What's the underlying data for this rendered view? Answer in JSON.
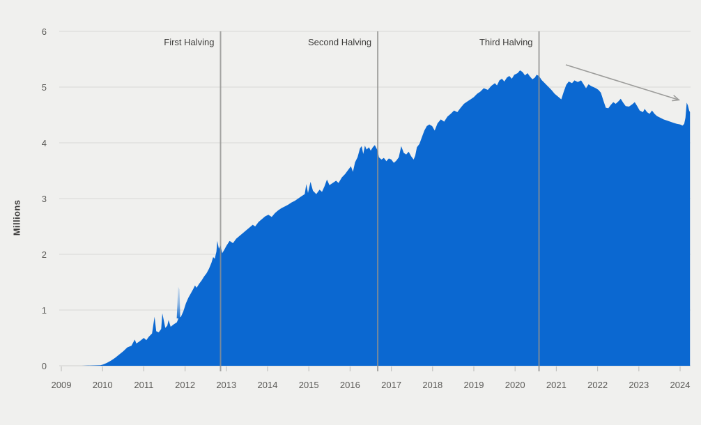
{
  "chart_data": {
    "type": "area",
    "title": "",
    "ylabel": "Millions",
    "xlabel": "",
    "ylim": [
      0,
      6
    ],
    "xlim": [
      2008.95,
      2024.3
    ],
    "grid": "horizontal",
    "yticks": [
      0,
      1,
      2,
      3,
      4,
      5,
      6
    ],
    "ytick_labels": [
      "0",
      "1",
      "2",
      "3",
      "4",
      "5",
      "6"
    ],
    "xticks": [
      2009,
      2010,
      2011,
      2012,
      2013,
      2014,
      2015,
      2016,
      2017,
      2018,
      2019,
      2020,
      2021,
      2022,
      2023,
      2024
    ],
    "xtick_labels": [
      "2009",
      "2010",
      "2011",
      "2012",
      "2013",
      "2014",
      "2015",
      "2016",
      "2017",
      "2018",
      "2019",
      "2020",
      "2021",
      "2022",
      "2023",
      "2024"
    ],
    "colors": {
      "background": "#f0f0ee",
      "area_fill": "#0b68d1",
      "gridline": "#dddddb",
      "axis_baseline": "#d6d6d4",
      "tick": "#c2c2c0",
      "halving_line": "#91918f",
      "arrow": "#9c9c9a",
      "axis_text": "#5b5a57",
      "annotation_text": "#3e3d3b"
    },
    "halvings": [
      {
        "label": "First Halving",
        "year": 2012.86
      },
      {
        "label": "Second Halving",
        "year": 2016.67
      },
      {
        "label": "Third Halving",
        "year": 2020.58
      }
    ],
    "trend_arrow": {
      "from": [
        2021.23,
        5.4
      ],
      "to": [
        2023.97,
        4.77
      ]
    },
    "anomaly_spike": {
      "year": 2011.84,
      "from_value": 0.85,
      "to_value": 1.42
    },
    "series": [
      {
        "name": "bitcoin-metric-millions",
        "points": [
          [
            2009.0,
            0.0
          ],
          [
            2009.5,
            0.0
          ],
          [
            2009.95,
            0.01
          ],
          [
            2010.0,
            0.02
          ],
          [
            2010.1,
            0.05
          ],
          [
            2010.2,
            0.09
          ],
          [
            2010.3,
            0.14
          ],
          [
            2010.4,
            0.2
          ],
          [
            2010.5,
            0.26
          ],
          [
            2010.6,
            0.33
          ],
          [
            2010.7,
            0.36
          ],
          [
            2010.78,
            0.47
          ],
          [
            2010.82,
            0.4
          ],
          [
            2010.9,
            0.44
          ],
          [
            2011.0,
            0.5
          ],
          [
            2011.06,
            0.46
          ],
          [
            2011.12,
            0.52
          ],
          [
            2011.2,
            0.58
          ],
          [
            2011.26,
            0.88
          ],
          [
            2011.3,
            0.62
          ],
          [
            2011.36,
            0.6
          ],
          [
            2011.42,
            0.66
          ],
          [
            2011.45,
            0.94
          ],
          [
            2011.52,
            0.68
          ],
          [
            2011.57,
            0.72
          ],
          [
            2011.6,
            0.82
          ],
          [
            2011.65,
            0.7
          ],
          [
            2011.72,
            0.74
          ],
          [
            2011.8,
            0.78
          ],
          [
            2011.84,
            0.85
          ],
          [
            2011.9,
            0.88
          ],
          [
            2011.96,
            0.98
          ],
          [
            2012.02,
            1.12
          ],
          [
            2012.08,
            1.22
          ],
          [
            2012.14,
            1.3
          ],
          [
            2012.2,
            1.38
          ],
          [
            2012.24,
            1.44
          ],
          [
            2012.28,
            1.4
          ],
          [
            2012.34,
            1.47
          ],
          [
            2012.4,
            1.53
          ],
          [
            2012.46,
            1.6
          ],
          [
            2012.52,
            1.66
          ],
          [
            2012.58,
            1.74
          ],
          [
            2012.64,
            1.85
          ],
          [
            2012.68,
            1.95
          ],
          [
            2012.72,
            1.92
          ],
          [
            2012.76,
            2.05
          ],
          [
            2012.78,
            2.24
          ],
          [
            2012.82,
            2.1
          ],
          [
            2012.86,
            2.16
          ],
          [
            2012.9,
            2.02
          ],
          [
            2012.95,
            2.08
          ],
          [
            2013.0,
            2.15
          ],
          [
            2013.08,
            2.24
          ],
          [
            2013.16,
            2.2
          ],
          [
            2013.24,
            2.28
          ],
          [
            2013.32,
            2.33
          ],
          [
            2013.4,
            2.38
          ],
          [
            2013.48,
            2.43
          ],
          [
            2013.56,
            2.48
          ],
          [
            2013.64,
            2.53
          ],
          [
            2013.7,
            2.5
          ],
          [
            2013.78,
            2.58
          ],
          [
            2013.86,
            2.63
          ],
          [
            2013.94,
            2.68
          ],
          [
            2014.02,
            2.71
          ],
          [
            2014.1,
            2.67
          ],
          [
            2014.18,
            2.74
          ],
          [
            2014.26,
            2.79
          ],
          [
            2014.34,
            2.83
          ],
          [
            2014.42,
            2.86
          ],
          [
            2014.5,
            2.89
          ],
          [
            2014.58,
            2.93
          ],
          [
            2014.66,
            2.96
          ],
          [
            2014.74,
            3.0
          ],
          [
            2014.82,
            3.04
          ],
          [
            2014.9,
            3.08
          ],
          [
            2014.94,
            3.26
          ],
          [
            2014.98,
            3.1
          ],
          [
            2015.04,
            3.3
          ],
          [
            2015.1,
            3.14
          ],
          [
            2015.18,
            3.08
          ],
          [
            2015.26,
            3.16
          ],
          [
            2015.32,
            3.12
          ],
          [
            2015.38,
            3.22
          ],
          [
            2015.44,
            3.34
          ],
          [
            2015.5,
            3.24
          ],
          [
            2015.58,
            3.28
          ],
          [
            2015.66,
            3.32
          ],
          [
            2015.72,
            3.28
          ],
          [
            2015.8,
            3.38
          ],
          [
            2015.88,
            3.44
          ],
          [
            2015.96,
            3.52
          ],
          [
            2016.02,
            3.58
          ],
          [
            2016.07,
            3.48
          ],
          [
            2016.12,
            3.65
          ],
          [
            2016.18,
            3.74
          ],
          [
            2016.24,
            3.9
          ],
          [
            2016.28,
            3.94
          ],
          [
            2016.32,
            3.8
          ],
          [
            2016.36,
            3.95
          ],
          [
            2016.4,
            3.88
          ],
          [
            2016.46,
            3.92
          ],
          [
            2016.5,
            3.86
          ],
          [
            2016.55,
            3.92
          ],
          [
            2016.6,
            3.96
          ],
          [
            2016.64,
            3.9
          ],
          [
            2016.67,
            3.86
          ],
          [
            2016.7,
            3.74
          ],
          [
            2016.76,
            3.7
          ],
          [
            2016.82,
            3.73
          ],
          [
            2016.88,
            3.67
          ],
          [
            2016.94,
            3.72
          ],
          [
            2017.0,
            3.7
          ],
          [
            2017.06,
            3.64
          ],
          [
            2017.12,
            3.68
          ],
          [
            2017.18,
            3.74
          ],
          [
            2017.24,
            3.94
          ],
          [
            2017.3,
            3.82
          ],
          [
            2017.36,
            3.79
          ],
          [
            2017.42,
            3.84
          ],
          [
            2017.48,
            3.76
          ],
          [
            2017.54,
            3.7
          ],
          [
            2017.58,
            3.77
          ],
          [
            2017.62,
            3.92
          ],
          [
            2017.68,
            3.98
          ],
          [
            2017.74,
            4.1
          ],
          [
            2017.8,
            4.22
          ],
          [
            2017.86,
            4.3
          ],
          [
            2017.92,
            4.33
          ],
          [
            2017.99,
            4.3
          ],
          [
            2018.05,
            4.22
          ],
          [
            2018.12,
            4.35
          ],
          [
            2018.2,
            4.42
          ],
          [
            2018.28,
            4.38
          ],
          [
            2018.36,
            4.47
          ],
          [
            2018.44,
            4.52
          ],
          [
            2018.52,
            4.58
          ],
          [
            2018.6,
            4.55
          ],
          [
            2018.68,
            4.63
          ],
          [
            2018.76,
            4.7
          ],
          [
            2018.84,
            4.74
          ],
          [
            2018.92,
            4.78
          ],
          [
            2019.0,
            4.82
          ],
          [
            2019.08,
            4.88
          ],
          [
            2019.16,
            4.92
          ],
          [
            2019.24,
            4.98
          ],
          [
            2019.34,
            4.95
          ],
          [
            2019.42,
            5.02
          ],
          [
            2019.51,
            5.07
          ],
          [
            2019.56,
            5.03
          ],
          [
            2019.62,
            5.12
          ],
          [
            2019.68,
            5.15
          ],
          [
            2019.74,
            5.1
          ],
          [
            2019.8,
            5.17
          ],
          [
            2019.86,
            5.2
          ],
          [
            2019.92,
            5.15
          ],
          [
            2019.98,
            5.22
          ],
          [
            2020.06,
            5.25
          ],
          [
            2020.12,
            5.3
          ],
          [
            2020.18,
            5.27
          ],
          [
            2020.24,
            5.21
          ],
          [
            2020.3,
            5.25
          ],
          [
            2020.36,
            5.19
          ],
          [
            2020.42,
            5.14
          ],
          [
            2020.48,
            5.17
          ],
          [
            2020.52,
            5.22
          ],
          [
            2020.58,
            5.2
          ],
          [
            2020.64,
            5.13
          ],
          [
            2020.72,
            5.07
          ],
          [
            2020.8,
            5.01
          ],
          [
            2020.88,
            4.95
          ],
          [
            2020.96,
            4.88
          ],
          [
            2021.04,
            4.83
          ],
          [
            2021.12,
            4.78
          ],
          [
            2021.18,
            4.92
          ],
          [
            2021.24,
            5.04
          ],
          [
            2021.3,
            5.1
          ],
          [
            2021.38,
            5.07
          ],
          [
            2021.44,
            5.12
          ],
          [
            2021.52,
            5.09
          ],
          [
            2021.6,
            5.12
          ],
          [
            2021.66,
            5.05
          ],
          [
            2021.72,
            4.98
          ],
          [
            2021.78,
            5.05
          ],
          [
            2021.84,
            5.02
          ],
          [
            2021.9,
            5.0
          ],
          [
            2021.96,
            4.98
          ],
          [
            2022.02,
            4.95
          ],
          [
            2022.08,
            4.9
          ],
          [
            2022.14,
            4.76
          ],
          [
            2022.2,
            4.63
          ],
          [
            2022.26,
            4.62
          ],
          [
            2022.32,
            4.68
          ],
          [
            2022.38,
            4.73
          ],
          [
            2022.44,
            4.7
          ],
          [
            2022.5,
            4.74
          ],
          [
            2022.56,
            4.79
          ],
          [
            2022.62,
            4.72
          ],
          [
            2022.68,
            4.66
          ],
          [
            2022.76,
            4.65
          ],
          [
            2022.84,
            4.69
          ],
          [
            2022.9,
            4.73
          ],
          [
            2022.96,
            4.66
          ],
          [
            2023.02,
            4.58
          ],
          [
            2023.1,
            4.55
          ],
          [
            2023.14,
            4.61
          ],
          [
            2023.2,
            4.55
          ],
          [
            2023.26,
            4.52
          ],
          [
            2023.32,
            4.58
          ],
          [
            2023.38,
            4.52
          ],
          [
            2023.44,
            4.48
          ],
          [
            2023.52,
            4.45
          ],
          [
            2023.6,
            4.42
          ],
          [
            2023.68,
            4.4
          ],
          [
            2023.76,
            4.38
          ],
          [
            2023.84,
            4.36
          ],
          [
            2023.92,
            4.34
          ],
          [
            2024.0,
            4.33
          ],
          [
            2024.06,
            4.31
          ],
          [
            2024.1,
            4.34
          ],
          [
            2024.13,
            4.45
          ],
          [
            2024.16,
            4.72
          ],
          [
            2024.19,
            4.67
          ],
          [
            2024.22,
            4.58
          ],
          [
            2024.24,
            4.55
          ]
        ]
      }
    ]
  }
}
